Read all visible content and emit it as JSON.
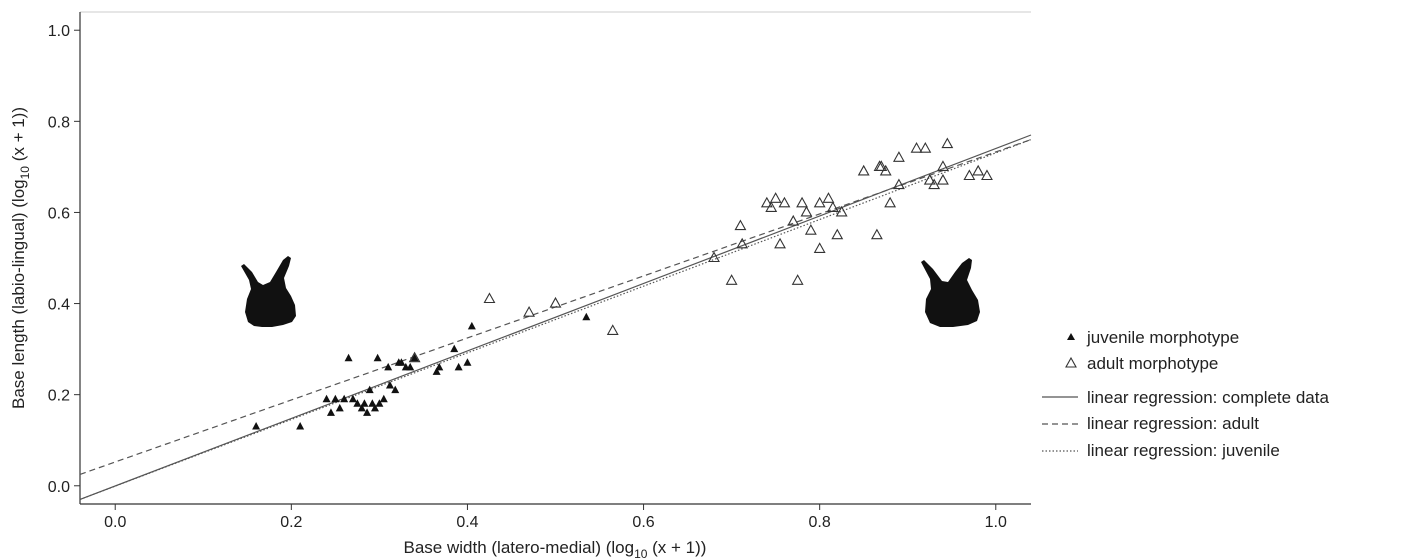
{
  "chart_data": {
    "type": "scatter",
    "xlabel_main": "Base width (latero-medial) (log",
    "xlabel_sub": "10",
    "xlabel_tail": " (x + 1))",
    "ylabel_main": "Base length (labio-lingual) (log",
    "ylabel_sub": "10",
    "ylabel_tail": " (x + 1))",
    "xlim": [
      -0.04,
      1.04
    ],
    "ylim": [
      -0.04,
      1.04
    ],
    "xticks": [
      "0.0",
      "0.2",
      "0.4",
      "0.6",
      "0.8",
      "1.0"
    ],
    "yticks": [
      "0.0",
      "0.2",
      "0.4",
      "0.6",
      "0.8",
      "1.0"
    ],
    "grid": false,
    "legend_position": "right",
    "legend": [
      {
        "label": "juvenile morphotype",
        "marker": "filled-triangle"
      },
      {
        "label": "adult morphotype",
        "marker": "open-triangle"
      },
      {
        "label": "linear regression: complete data",
        "line": "solid"
      },
      {
        "label": "linear regression: adult",
        "line": "dashed"
      },
      {
        "label": "linear regression: juvenile",
        "line": "dotted"
      }
    ],
    "series": [
      {
        "marker": "filled-triangle",
        "points": [
          [
            0.16,
            0.13
          ],
          [
            0.21,
            0.13
          ],
          [
            0.24,
            0.19
          ],
          [
            0.245,
            0.16
          ],
          [
            0.25,
            0.19
          ],
          [
            0.255,
            0.17
          ],
          [
            0.26,
            0.19
          ],
          [
            0.265,
            0.28
          ],
          [
            0.27,
            0.19
          ],
          [
            0.275,
            0.18
          ],
          [
            0.28,
            0.17
          ],
          [
            0.283,
            0.18
          ],
          [
            0.286,
            0.16
          ],
          [
            0.289,
            0.21
          ],
          [
            0.292,
            0.18
          ],
          [
            0.295,
            0.17
          ],
          [
            0.298,
            0.28
          ],
          [
            0.3,
            0.18
          ],
          [
            0.305,
            0.19
          ],
          [
            0.31,
            0.26
          ],
          [
            0.312,
            0.22
          ],
          [
            0.318,
            0.21
          ],
          [
            0.322,
            0.27
          ],
          [
            0.325,
            0.27
          ],
          [
            0.33,
            0.26
          ],
          [
            0.335,
            0.26
          ],
          [
            0.34,
            0.28
          ],
          [
            0.365,
            0.25
          ],
          [
            0.368,
            0.26
          ],
          [
            0.385,
            0.3
          ],
          [
            0.39,
            0.26
          ],
          [
            0.4,
            0.27
          ],
          [
            0.405,
            0.35
          ],
          [
            0.535,
            0.37
          ]
        ]
      },
      {
        "marker": "open-triangle",
        "points": [
          [
            0.34,
            0.28
          ],
          [
            0.425,
            0.41
          ],
          [
            0.47,
            0.38
          ],
          [
            0.5,
            0.4
          ],
          [
            0.565,
            0.34
          ],
          [
            0.68,
            0.5
          ],
          [
            0.7,
            0.45
          ],
          [
            0.71,
            0.57
          ],
          [
            0.712,
            0.53
          ],
          [
            0.74,
            0.62
          ],
          [
            0.745,
            0.61
          ],
          [
            0.75,
            0.63
          ],
          [
            0.755,
            0.53
          ],
          [
            0.76,
            0.62
          ],
          [
            0.77,
            0.58
          ],
          [
            0.775,
            0.45
          ],
          [
            0.78,
            0.62
          ],
          [
            0.785,
            0.6
          ],
          [
            0.79,
            0.56
          ],
          [
            0.8,
            0.52
          ],
          [
            0.8,
            0.62
          ],
          [
            0.81,
            0.63
          ],
          [
            0.815,
            0.61
          ],
          [
            0.82,
            0.55
          ],
          [
            0.825,
            0.6
          ],
          [
            0.85,
            0.69
          ],
          [
            0.865,
            0.55
          ],
          [
            0.868,
            0.7
          ],
          [
            0.87,
            0.7
          ],
          [
            0.875,
            0.69
          ],
          [
            0.88,
            0.62
          ],
          [
            0.89,
            0.66
          ],
          [
            0.89,
            0.72
          ],
          [
            0.91,
            0.74
          ],
          [
            0.92,
            0.74
          ],
          [
            0.925,
            0.67
          ],
          [
            0.93,
            0.66
          ],
          [
            0.94,
            0.7
          ],
          [
            0.94,
            0.67
          ],
          [
            0.945,
            0.75
          ],
          [
            0.97,
            0.68
          ],
          [
            0.98,
            0.69
          ],
          [
            0.99,
            0.68
          ]
        ]
      }
    ],
    "regression_lines": [
      {
        "style": "solid",
        "x": [
          -0.04,
          1.04
        ],
        "y": [
          -0.03,
          0.77
        ]
      },
      {
        "style": "dashed",
        "x": [
          -0.04,
          1.04
        ],
        "y": [
          0.025,
          0.76
        ]
      },
      {
        "style": "dotted",
        "x": [
          -0.04,
          1.04
        ],
        "y": [
          -0.03,
          0.76
        ]
      }
    ]
  }
}
